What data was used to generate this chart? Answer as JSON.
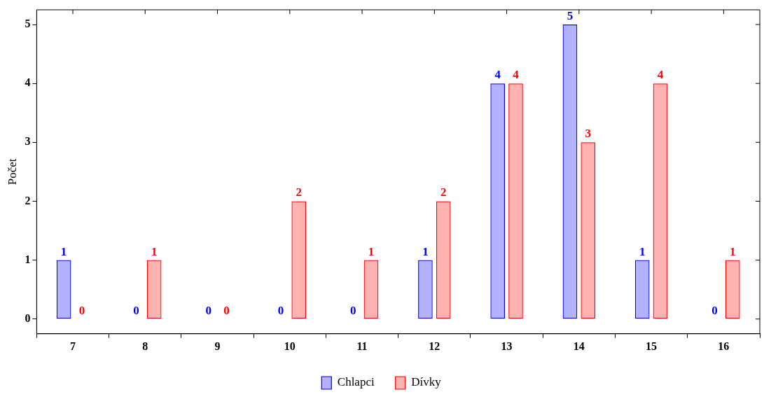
{
  "chart_data": {
    "type": "bar",
    "ylabel": "Počet",
    "categories": [
      "7",
      "8",
      "9",
      "10",
      "11",
      "12",
      "13",
      "14",
      "15",
      "16"
    ],
    "series": [
      {
        "name": "Chlapci",
        "color": "#0000ff",
        "values": [
          1,
          0,
          0,
          0,
          0,
          1,
          4,
          5,
          1,
          0
        ]
      },
      {
        "name": "Dívky",
        "color": "#ff0000",
        "values": [
          0,
          1,
          0,
          2,
          1,
          2,
          4,
          3,
          4,
          1
        ]
      }
    ],
    "ylim": [
      -0.25,
      5.25
    ],
    "yticks": [
      0,
      1,
      2,
      3,
      4,
      5
    ],
    "data_labels": true,
    "grid": false,
    "legend": "bottom"
  }
}
